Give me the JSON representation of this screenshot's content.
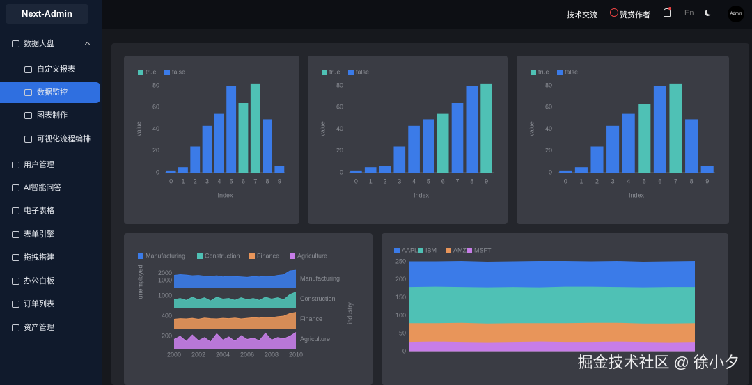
{
  "sidebar": {
    "logo": "Next-Admin",
    "menu": [
      {
        "label": "数据大盘"
      },
      {
        "label": "自定义报表"
      },
      {
        "label": "数据监控"
      },
      {
        "label": "图表制作"
      },
      {
        "label": "可视化流程编排"
      },
      {
        "label": "用户管理"
      },
      {
        "label": "AI智能问答"
      },
      {
        "label": "电子表格"
      },
      {
        "label": "表单引擎"
      },
      {
        "label": "拖拽搭建"
      },
      {
        "label": "办公白板"
      },
      {
        "label": "订单列表"
      },
      {
        "label": "资产管理"
      }
    ]
  },
  "header": {
    "links": [
      "技术交流",
      "赞赏作者"
    ],
    "lang": "En",
    "avatar": "Admin"
  },
  "watermark": "掘金技术社区 @ 徐小夕",
  "chart_data": [
    {
      "type": "bar",
      "x_label": "Index",
      "y_label": "value",
      "categories": [
        "0",
        "1",
        "2",
        "3",
        "4",
        "5",
        "6",
        "7",
        "8",
        "9"
      ],
      "ylim": [
        0,
        80
      ],
      "yticks": [
        0,
        20,
        40,
        60,
        80
      ],
      "series": [
        {
          "name": "true",
          "color": "#4fc1b5",
          "values": [
            null,
            null,
            null,
            null,
            null,
            null,
            64,
            82,
            null,
            null
          ]
        },
        {
          "name": "false",
          "color": "#3b7be8",
          "values": [
            2,
            5,
            24,
            43,
            54,
            80,
            null,
            null,
            49,
            6
          ]
        }
      ]
    },
    {
      "type": "bar",
      "x_label": "Index",
      "y_label": "value",
      "categories": [
        "0",
        "1",
        "2",
        "3",
        "4",
        "5",
        "6",
        "7",
        "8",
        "9"
      ],
      "ylim": [
        0,
        80
      ],
      "yticks": [
        0,
        20,
        40,
        60,
        80
      ],
      "series": [
        {
          "name": "true",
          "color": "#4fc1b5",
          "values": [
            null,
            null,
            null,
            null,
            null,
            null,
            54,
            null,
            null,
            82
          ]
        },
        {
          "name": "false",
          "color": "#3b7be8",
          "values": [
            2,
            5,
            6,
            24,
            43,
            49,
            null,
            64,
            80,
            null
          ]
        }
      ]
    },
    {
      "type": "bar",
      "x_label": "Index",
      "y_label": "value",
      "categories": [
        "0",
        "1",
        "2",
        "3",
        "4",
        "5",
        "6",
        "7",
        "8",
        "9"
      ],
      "ylim": [
        0,
        80
      ],
      "yticks": [
        0,
        20,
        40,
        60,
        80
      ],
      "series": [
        {
          "name": "true",
          "color": "#4fc1b5",
          "values": [
            null,
            null,
            null,
            null,
            null,
            63,
            null,
            82,
            null,
            null
          ]
        },
        {
          "name": "false",
          "color": "#3b7be8",
          "values": [
            2,
            5,
            24,
            43,
            54,
            null,
            80,
            null,
            49,
            6
          ]
        }
      ]
    },
    {
      "type": "ridge",
      "y_label": "unemployed",
      "y2_label": "industry",
      "xlim": [
        2000,
        2010
      ],
      "xticks": [
        2000,
        2002,
        2004,
        2006,
        2008,
        2010
      ],
      "x": [
        2000,
        2000.5,
        2001,
        2001.5,
        2002,
        2002.5,
        2003,
        2003.5,
        2004,
        2004.5,
        2005,
        2005.5,
        2006,
        2006.5,
        2007,
        2007.5,
        2008,
        2008.5,
        2009,
        2009.5,
        2010
      ],
      "series": [
        {
          "name": "Manufacturing",
          "color": "#3b7be8",
          "ylim": [
            0,
            2500
          ],
          "yticks": [
            1000,
            2000
          ],
          "values": [
            1700,
            1800,
            1750,
            1650,
            1700,
            1600,
            1550,
            1650,
            1500,
            1600,
            1550,
            1500,
            1450,
            1550,
            1500,
            1600,
            1550,
            1700,
            1800,
            2300,
            2400
          ]
        },
        {
          "name": "Construction",
          "color": "#4fc1b5",
          "ylim": [
            0,
            1500
          ],
          "yticks": [
            1000
          ],
          "values": [
            700,
            800,
            650,
            900,
            700,
            850,
            600,
            900,
            750,
            800,
            650,
            850,
            700,
            800,
            650,
            900,
            750,
            850,
            700,
            1100,
            1300
          ]
        },
        {
          "name": "Finance",
          "color": "#e8955a",
          "ylim": [
            0,
            600
          ],
          "yticks": [
            400
          ],
          "values": [
            300,
            320,
            310,
            330,
            300,
            340,
            320,
            310,
            330,
            320,
            340,
            310,
            330,
            350,
            340,
            360,
            350,
            380,
            400,
            480,
            520
          ]
        },
        {
          "name": "Agriculture",
          "color": "#c77de8",
          "ylim": [
            0,
            300
          ],
          "yticks": [
            200
          ],
          "values": [
            150,
            200,
            120,
            220,
            130,
            180,
            110,
            240,
            140,
            190,
            120,
            210,
            150,
            170,
            130,
            250,
            140,
            180,
            160,
            200,
            260
          ]
        }
      ]
    },
    {
      "type": "stacked_area",
      "ylim": [
        0,
        250
      ],
      "yticks": [
        0,
        50,
        100,
        150,
        200,
        250
      ],
      "series": [
        {
          "name": "AAPL",
          "color": "#3b7be8",
          "values": [
            70,
            69,
            71,
            70,
            70,
            72,
            70,
            69,
            71,
            70,
            70,
            71
          ]
        },
        {
          "name": "IBM",
          "color": "#4fc1b5",
          "values": [
            101,
            102,
            100,
            101,
            101,
            100,
            102,
            101,
            100,
            101,
            102,
            101
          ]
        },
        {
          "name": "AMZN",
          "color": "#e8955a",
          "values": [
            52,
            51,
            53,
            52,
            52,
            51,
            52,
            53,
            52,
            51,
            52,
            52
          ]
        },
        {
          "name": "MSFT",
          "color": "#c77de8",
          "values": [
            27,
            28,
            27,
            26,
            27,
            28,
            27,
            27,
            28,
            27,
            26,
            27
          ]
        }
      ]
    }
  ]
}
